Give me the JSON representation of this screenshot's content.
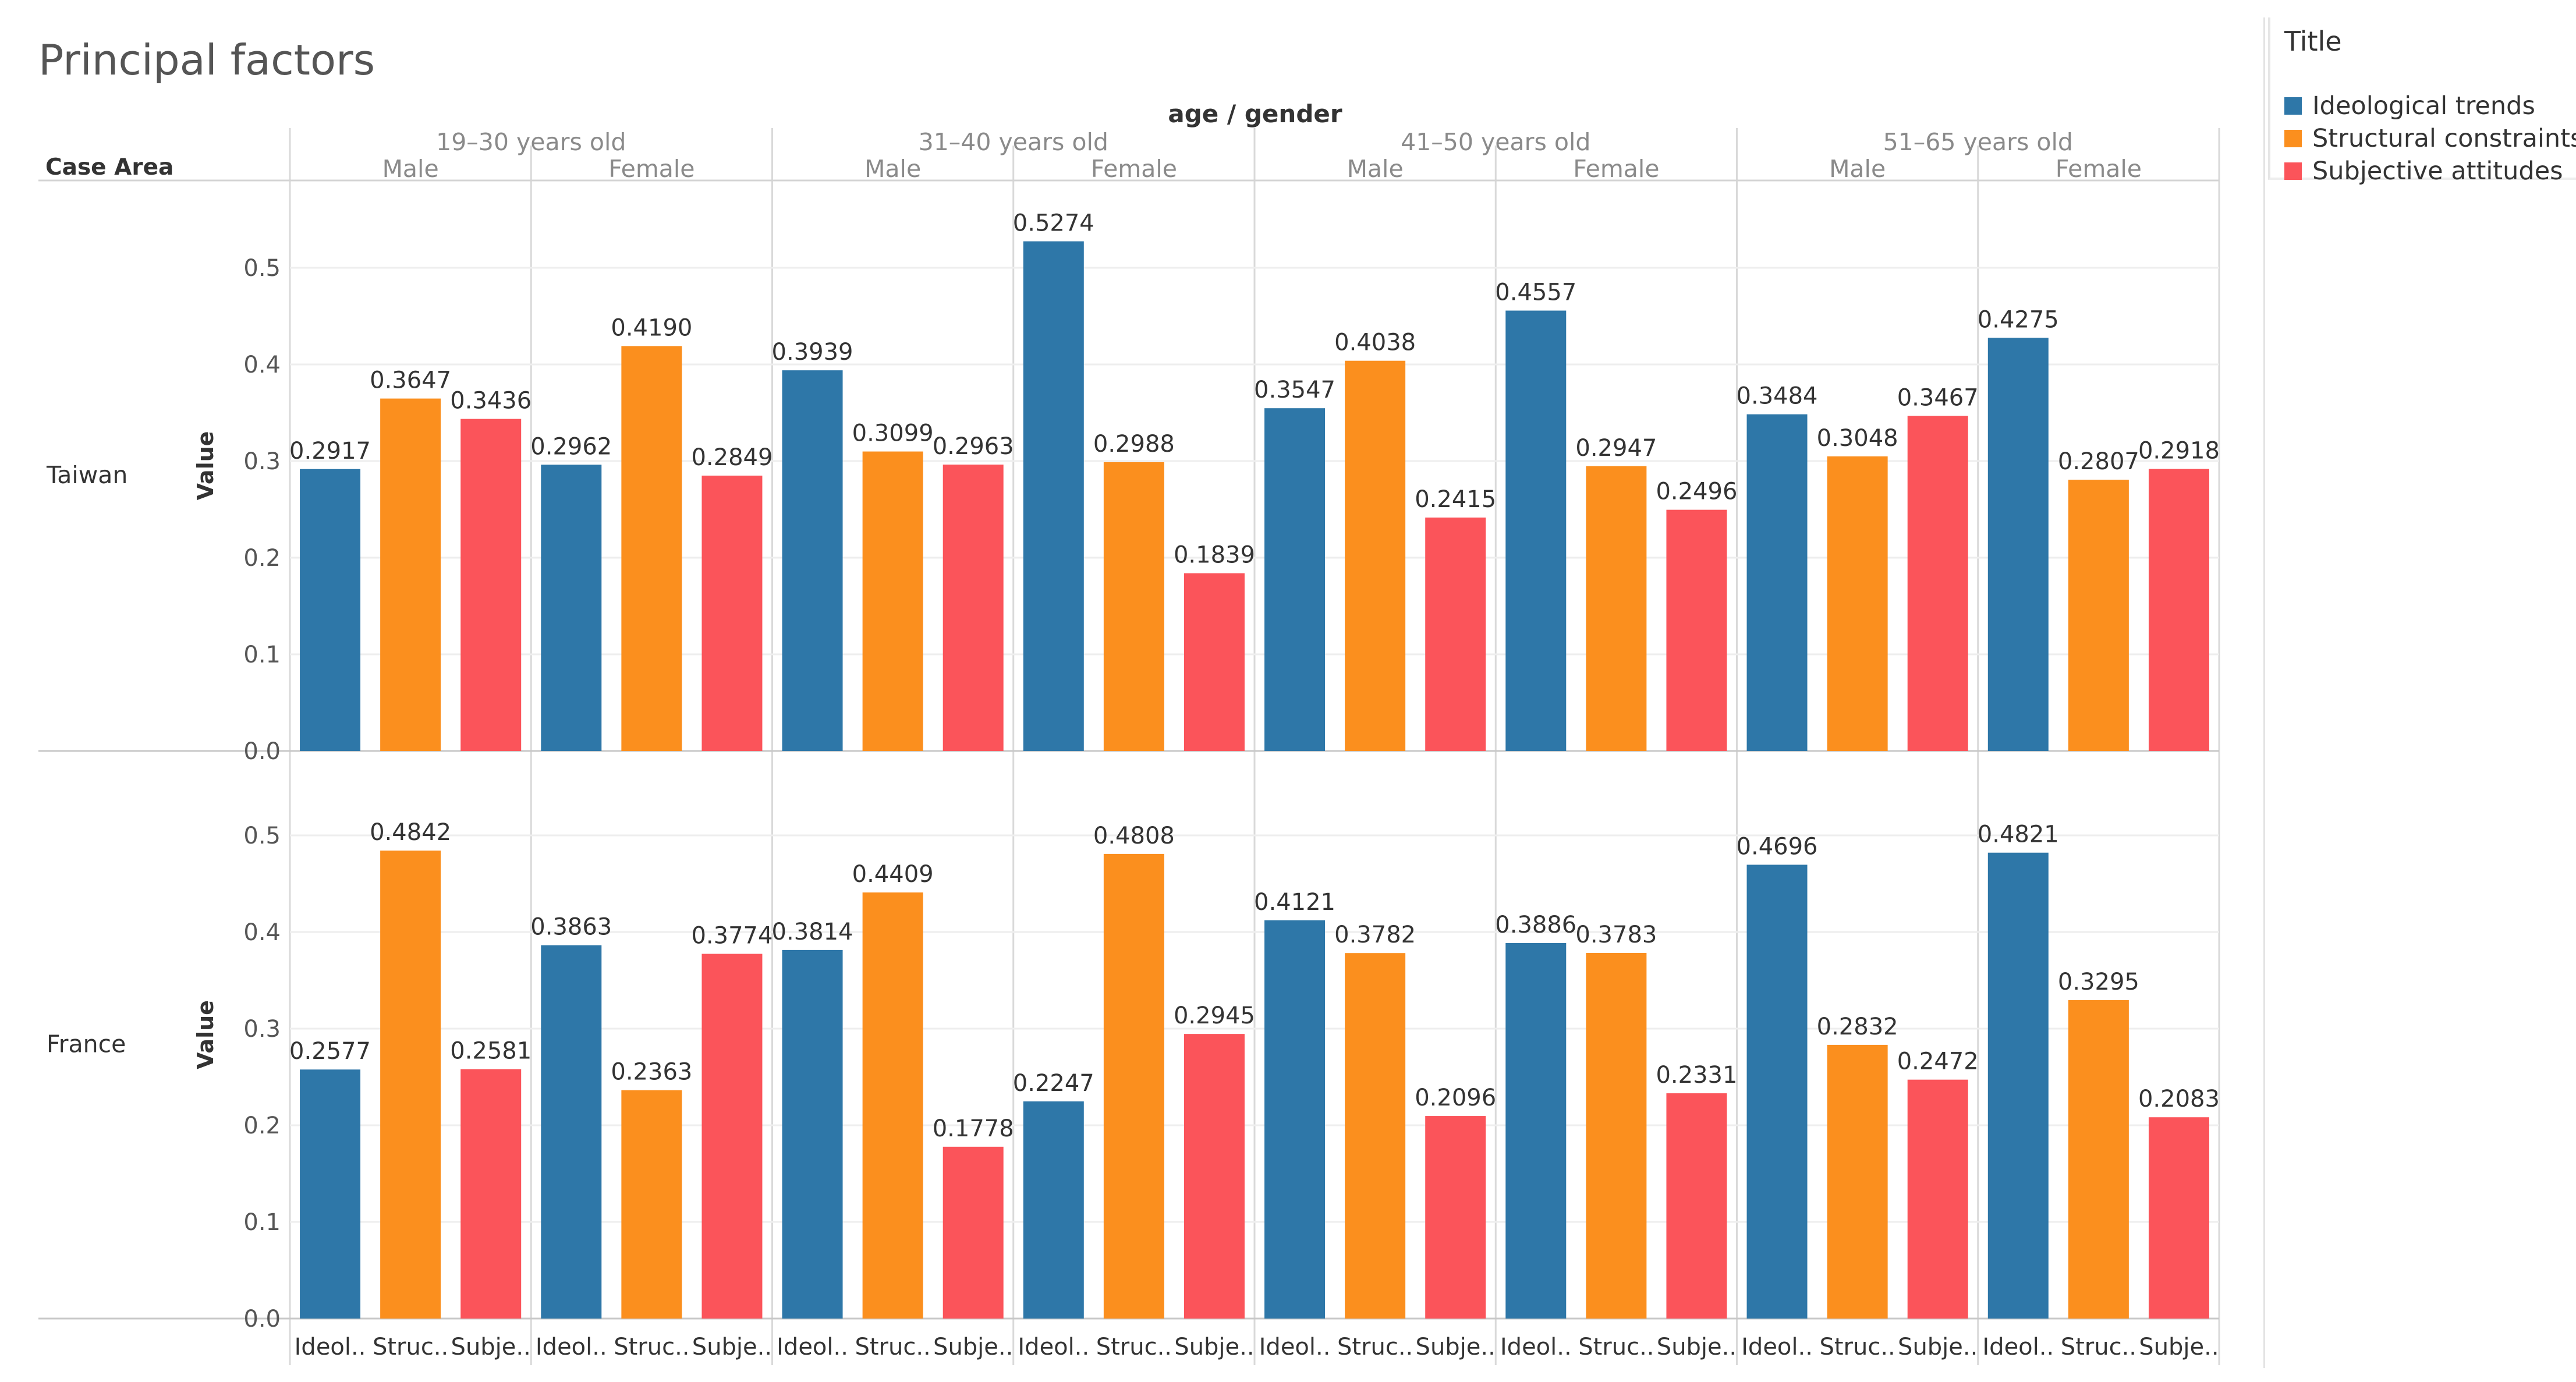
{
  "title": "Principal factors",
  "header_axis_title": "age / gender",
  "row_header_title": "Case Area",
  "legend": {
    "title": "Title",
    "items": [
      {
        "label": "Ideological trends",
        "color": "#2e77a8"
      },
      {
        "label": "Structural constraints",
        "color": "#fb8f1e"
      },
      {
        "label": "Subjective attitudes",
        "color": "#fb545a"
      }
    ]
  },
  "chart_data": {
    "type": "bar",
    "title": "Principal factors",
    "ylabel": "Value",
    "ylim": [
      0,
      0.6
    ],
    "yticks": [
      "0.0",
      "0.1",
      "0.2",
      "0.3",
      "0.4",
      "0.5"
    ],
    "age_groups": [
      "19–30 years old",
      "31–40 years old",
      "41–50 years old",
      "51–65 years old"
    ],
    "genders": [
      "Male",
      "Female"
    ],
    "categories": [
      "Ideological trends",
      "Structural constraints",
      "Subjective attitudes"
    ],
    "category_tick_labels": [
      "Ideol..",
      "Struc..",
      "Subje.."
    ],
    "series_colors": [
      "#2e77a8",
      "#fb8f1e",
      "#fb545a"
    ],
    "rows": [
      {
        "area": "Taiwan",
        "values": [
          [
            0.2917,
            0.3647,
            0.3436
          ],
          [
            0.2962,
            0.419,
            0.2849
          ],
          [
            0.3939,
            0.3099,
            0.2963
          ],
          [
            0.5274,
            0.2988,
            0.1839
          ],
          [
            0.3547,
            0.4038,
            0.2415
          ],
          [
            0.4557,
            0.2947,
            0.2496
          ],
          [
            0.3484,
            0.3048,
            0.3467
          ],
          [
            0.4275,
            0.2807,
            0.2918
          ]
        ],
        "labels": [
          [
            "0.2917",
            "0.3647",
            "0.3436"
          ],
          [
            "0.2962",
            "0.4190",
            "0.2849"
          ],
          [
            "0.3939",
            "0.3099",
            "0.2963"
          ],
          [
            "0.5274",
            "0.2988",
            "0.1839"
          ],
          [
            "0.3547",
            "0.4038",
            "0.2415"
          ],
          [
            "0.4557",
            "0.2947",
            "0.2496"
          ],
          [
            "0.3484",
            "0.3048",
            "0.3467"
          ],
          [
            "0.4275",
            "0.2807",
            "0.2918"
          ]
        ]
      },
      {
        "area": "France",
        "values": [
          [
            0.2577,
            0.4842,
            0.2581
          ],
          [
            0.3863,
            0.2363,
            0.3774
          ],
          [
            0.3814,
            0.4409,
            0.1778
          ],
          [
            0.2247,
            0.4808,
            0.2945
          ],
          [
            0.4121,
            0.3782,
            0.2096
          ],
          [
            0.3886,
            0.3783,
            0.2331
          ],
          [
            0.4696,
            0.2832,
            0.2472
          ],
          [
            0.4821,
            0.3295,
            0.2083
          ]
        ],
        "labels": [
          [
            "0.2577",
            "0.4842",
            "0.2581"
          ],
          [
            "0.3863",
            "0.2363",
            "0.3774"
          ],
          [
            "0.3814",
            "0.4409",
            "0.1778"
          ],
          [
            "0.2247",
            "0.4808",
            "0.2945"
          ],
          [
            "0.4121",
            "0.3782",
            "0.2096"
          ],
          [
            "0.3886",
            "0.3783",
            "0.2331"
          ],
          [
            "0.4696",
            "0.2832",
            "0.2472"
          ],
          [
            "0.4821",
            "0.3295",
            "0.2083"
          ]
        ]
      }
    ]
  }
}
